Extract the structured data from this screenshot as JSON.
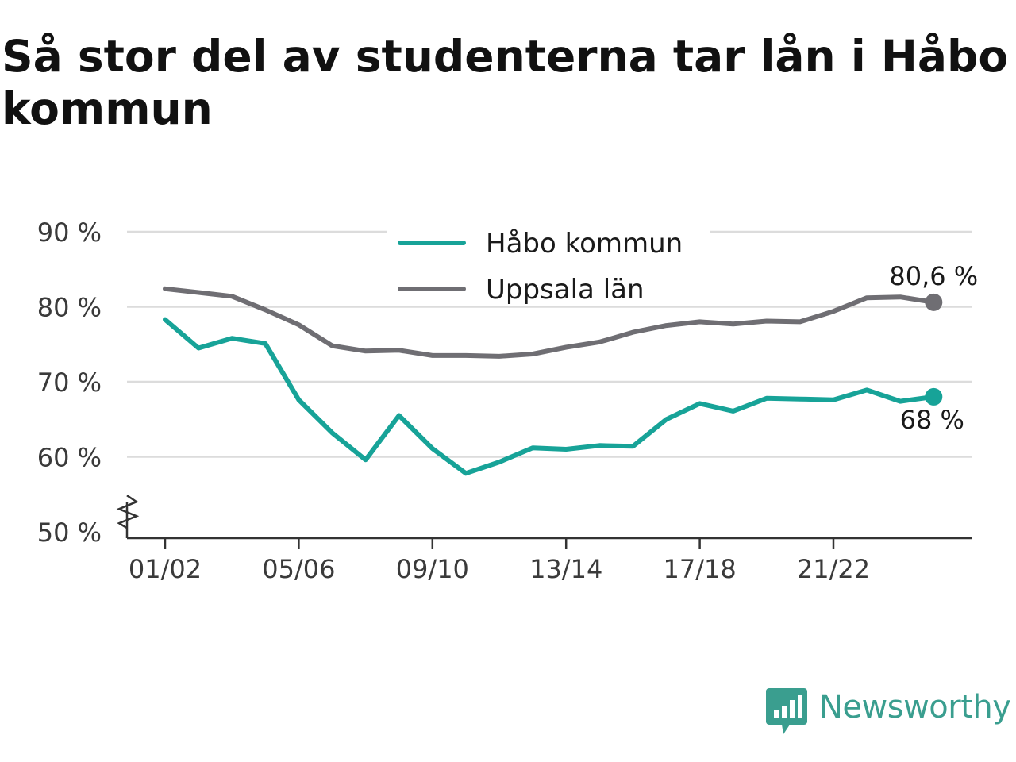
{
  "chart_data": {
    "type": "line",
    "title": "Så stor del av studenterna tar lån i Håbo kommun",
    "x": [
      "01/02",
      "02/03",
      "03/04",
      "04/05",
      "05/06",
      "06/07",
      "07/08",
      "08/09",
      "09/10",
      "10/11",
      "11/12",
      "12/13",
      "13/14",
      "14/15",
      "15/16",
      "16/17",
      "17/18",
      "18/19",
      "19/20",
      "20/21",
      "21/22",
      "22/23",
      "23/24",
      "24/25"
    ],
    "x_tick_labels": [
      "01/02",
      "05/06",
      "09/10",
      "13/14",
      "17/18",
      "21/22"
    ],
    "y_tick_labels": [
      "50 %",
      "60 %",
      "70 %",
      "80 %",
      "90 %"
    ],
    "y_ticks": [
      50,
      60,
      70,
      80,
      90
    ],
    "ylim": [
      50,
      90
    ],
    "y_axis_break": true,
    "grid": true,
    "legend_position": "top-center",
    "series": [
      {
        "name": "Håbo kommun",
        "color": "#17a398",
        "values": [
          78.3,
          74.5,
          75.8,
          75.1,
          67.6,
          63.2,
          59.6,
          65.5,
          61.1,
          57.8,
          59.3,
          61.2,
          61.0,
          61.5,
          61.4,
          65.0,
          67.1,
          66.1,
          67.8,
          67.7,
          67.6,
          68.9,
          67.4,
          68.0
        ],
        "end_label": "68 %"
      },
      {
        "name": "Uppsala län",
        "color": "#6f6e73",
        "values": [
          82.4,
          81.9,
          81.4,
          79.6,
          77.6,
          74.8,
          74.1,
          74.2,
          73.5,
          73.5,
          73.4,
          73.7,
          74.6,
          75.3,
          76.6,
          77.5,
          78.0,
          77.7,
          78.1,
          78.0,
          79.4,
          81.2,
          81.3,
          80.6
        ],
        "end_label": "80,6 %"
      }
    ]
  },
  "brand": {
    "name": "Newsworthy",
    "logo_icon": "chart-speech-bubble-icon",
    "color": "#3a9e8f"
  }
}
